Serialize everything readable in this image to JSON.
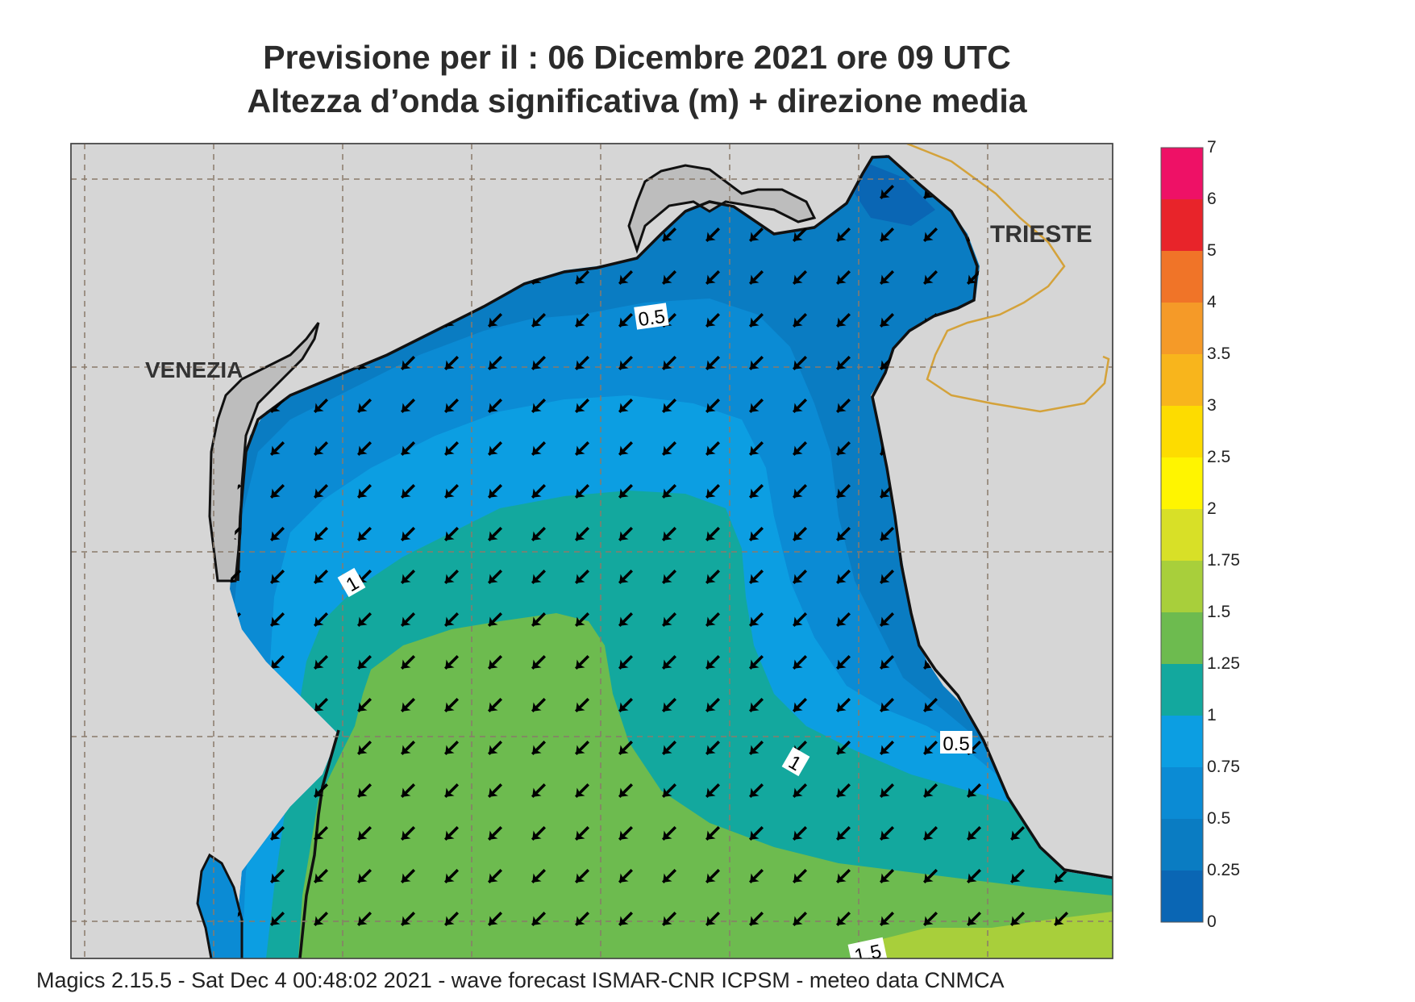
{
  "title": {
    "line1": "Previsione per il  :  06 Dicembre  2021   ore 09 UTC",
    "line2": "Altezza d’onda significativa (m) + direzione media"
  },
  "cities": {
    "venezia": "VENEZIA",
    "trieste": "TRIESTE"
  },
  "contour_labels": {
    "a": "0.5",
    "b": "1",
    "c": "1",
    "d": "0.5",
    "e": "1.5"
  },
  "legend": {
    "ticks": [
      "7",
      "6",
      "5",
      "4",
      "3.5",
      "3",
      "2.5",
      "2",
      "1.75",
      "1.5",
      "1.25",
      "1",
      "0.75",
      "0.5",
      "0.25",
      "0"
    ],
    "colors": [
      "#ee1166",
      "#e8242a",
      "#f07428",
      "#f59a28",
      "#f8b51c",
      "#fddc00",
      "#fff500",
      "#d8e027",
      "#a8cf3b",
      "#6dbb4f",
      "#13a89e",
      "#0c9ee2",
      "#0b8bd4",
      "#0a7cc2",
      "#0a66b4"
    ]
  },
  "arrow_direction": "southwest",
  "footer": "Magics 2.15.5 - Sat Dec  4 00:48:02 2021 - wave forecast  ISMAR-CNR  ICPSM - meteo data   CNMCA"
}
